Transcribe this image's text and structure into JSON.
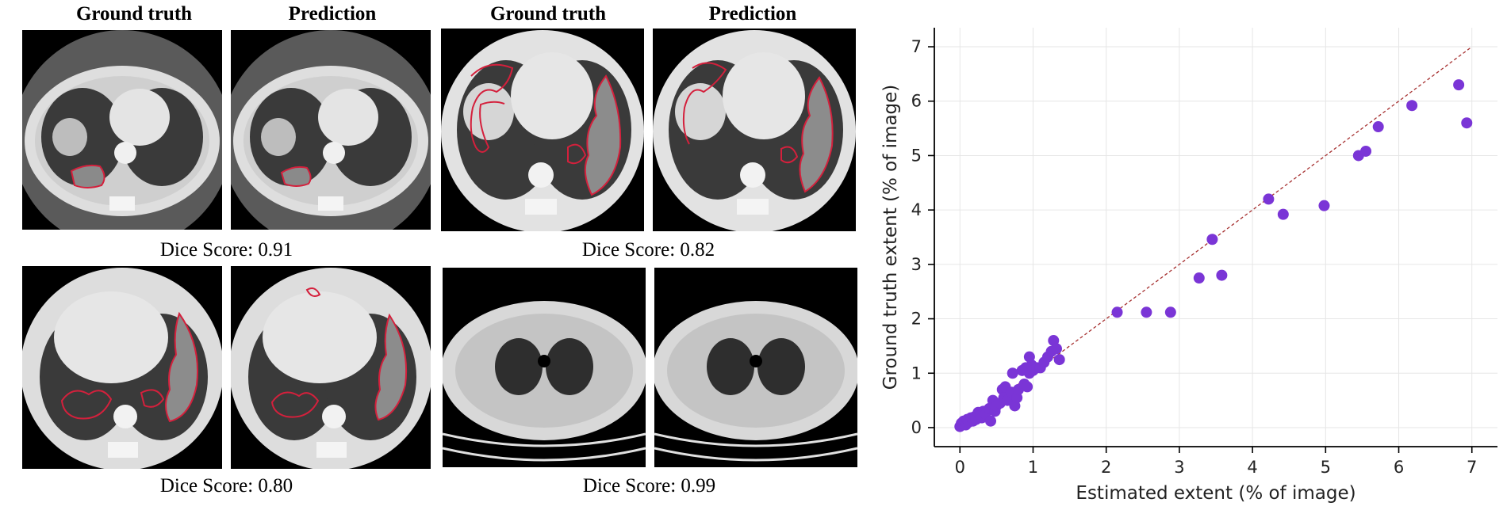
{
  "panels": {
    "headers": [
      "Ground truth",
      "Prediction",
      "Ground truth",
      "Prediction"
    ],
    "dice_labels": [
      "Dice Score: 0.91",
      "Dice Score: 0.82",
      "Dice Score: 0.80",
      "Dice Score: 0.99"
    ]
  },
  "colors": {
    "scatter_point": "#7a35d6",
    "identity_line": "#a63030",
    "contour": "#d4203c",
    "axis": "#000000",
    "grid": "#e6e6e6"
  },
  "chart_data": {
    "type": "scatter",
    "xlabel": "Estimated extent (% of image)",
    "ylabel": "Ground truth extent (% of image)",
    "xlim": [
      -0.35,
      7.35
    ],
    "ylim": [
      -0.35,
      7.35
    ],
    "xticks": [
      "0",
      "1",
      "2",
      "3",
      "4",
      "5",
      "6",
      "7"
    ],
    "yticks": [
      "0",
      "1",
      "2",
      "3",
      "4",
      "5",
      "6",
      "7"
    ],
    "grid": true,
    "identity_line": [
      [
        0,
        0
      ],
      [
        7,
        7
      ]
    ],
    "points": [
      [
        0.0,
        0.02
      ],
      [
        0.02,
        0.08
      ],
      [
        0.05,
        0.12
      ],
      [
        0.08,
        0.05
      ],
      [
        0.1,
        0.15
      ],
      [
        0.12,
        0.1
      ],
      [
        0.15,
        0.18
      ],
      [
        0.18,
        0.12
      ],
      [
        0.2,
        0.2
      ],
      [
        0.22,
        0.15
      ],
      [
        0.25,
        0.28
      ],
      [
        0.28,
        0.22
      ],
      [
        0.3,
        0.18
      ],
      [
        0.32,
        0.3
      ],
      [
        0.35,
        0.25
      ],
      [
        0.4,
        0.35
      ],
      [
        0.42,
        0.12
      ],
      [
        0.45,
        0.5
      ],
      [
        0.48,
        0.3
      ],
      [
        0.5,
        0.4
      ],
      [
        0.55,
        0.45
      ],
      [
        0.58,
        0.7
      ],
      [
        0.6,
        0.55
      ],
      [
        0.62,
        0.75
      ],
      [
        0.65,
        0.5
      ],
      [
        0.7,
        0.65
      ],
      [
        0.72,
        1.0
      ],
      [
        0.75,
        0.4
      ],
      [
        0.78,
        0.55
      ],
      [
        0.8,
        0.7
      ],
      [
        0.85,
        1.05
      ],
      [
        0.88,
        0.8
      ],
      [
        0.9,
        1.1
      ],
      [
        0.92,
        0.75
      ],
      [
        0.95,
        1.0
      ],
      [
        0.98,
        1.15
      ],
      [
        1.0,
        1.05
      ],
      [
        1.05,
        1.1
      ],
      [
        1.1,
        1.1
      ],
      [
        1.15,
        1.2
      ],
      [
        1.2,
        1.3
      ],
      [
        1.25,
        1.4
      ],
      [
        1.28,
        1.6
      ],
      [
        1.32,
        1.45
      ],
      [
        1.36,
        1.25
      ],
      [
        0.95,
        1.3
      ],
      [
        2.15,
        2.12
      ],
      [
        2.55,
        2.12
      ],
      [
        2.88,
        2.12
      ],
      [
        3.27,
        2.75
      ],
      [
        3.45,
        3.46
      ],
      [
        3.58,
        2.8
      ],
      [
        4.22,
        4.2
      ],
      [
        4.42,
        3.92
      ],
      [
        4.98,
        4.08
      ],
      [
        5.45,
        5.0
      ],
      [
        5.55,
        5.08
      ],
      [
        5.72,
        5.53
      ],
      [
        6.18,
        5.92
      ],
      [
        6.82,
        6.3
      ],
      [
        6.93,
        5.6
      ]
    ]
  }
}
